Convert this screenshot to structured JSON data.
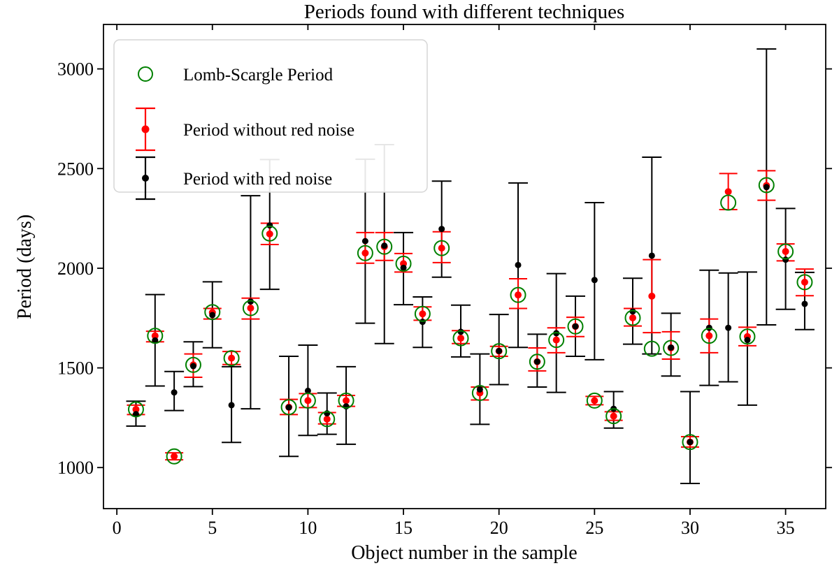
{
  "title": "Periods found with different techniques",
  "axes": {
    "xlabel": "Object number in the sample",
    "ylabel": "Period (days)"
  },
  "colors": {
    "lomb_scargle": "#008000",
    "no_red_noise": "#ff0000",
    "red_noise": "#000000",
    "spine": "#000000",
    "legend_border": "#d5d5d5",
    "background": "#ffffff"
  },
  "legend": {
    "position": "upper left",
    "entries": [
      {
        "label": "Lomb-Scargle Period",
        "marker": "open-circle",
        "color": "#008000"
      },
      {
        "label": "Period without red noise",
        "marker": "errorbar-dot",
        "color": "#ff0000"
      },
      {
        "label": "Period with red noise",
        "marker": "errorbar-dot",
        "color": "#000000"
      }
    ]
  },
  "chart_data": {
    "type": "scatter",
    "title": "Periods found with different techniques",
    "xlabel": "Object number in the sample",
    "ylabel": "Period (days)",
    "xlim": [
      -0.7,
      37.1
    ],
    "ylim": [
      794,
      3223
    ],
    "xticks": [
      0,
      5,
      10,
      15,
      20,
      25,
      30,
      35
    ],
    "yticks": [
      1000,
      1500,
      2000,
      2500,
      3000
    ],
    "grid": false,
    "x": [
      1,
      2,
      3,
      4,
      5,
      6,
      7,
      8,
      9,
      10,
      11,
      12,
      13,
      14,
      15,
      16,
      17,
      18,
      19,
      20,
      21,
      22,
      23,
      24,
      25,
      26,
      27,
      28,
      29,
      30,
      31,
      32,
      33,
      34,
      35,
      36
    ],
    "series": [
      {
        "name": "Lomb-Scargle Period",
        "type": "open-circle",
        "color": "#008000",
        "y": [
          1292,
          1661,
          1056,
          1515,
          1780,
          1549,
          1800,
          2174,
          1303,
          1336,
          1243,
          1336,
          2076,
          2108,
          2023,
          1771,
          2101,
          1649,
          1374,
          1584,
          1866,
          1531,
          1640,
          1708,
          1336,
          1258,
          1751,
          1596,
          1600,
          1128,
          1661,
          2329,
          1657,
          2417,
          2084,
          1930
        ]
      },
      {
        "name": "Period without red noise",
        "type": "errorbar-dot",
        "color": "#ff0000",
        "y": [
          1292,
          1661,
          1056,
          1515,
          1778,
          1549,
          1800,
          2172,
          1303,
          1336,
          1243,
          1336,
          2076,
          2108,
          2023,
          1771,
          2101,
          1649,
          1374,
          1584,
          1866,
          1531,
          1640,
          1708,
          1336,
          1258,
          1751,
          1860,
          1600,
          1128,
          1661,
          2384,
          1657,
          2415,
          2084,
          1930
        ],
        "y_lo": [
          1266,
          1631,
          1039,
          1453,
          1745,
          1517,
          1745,
          2119,
          1266,
          1301,
          1219,
          1307,
          2025,
          2039,
          1981,
          1739,
          2028,
          1622,
          1339,
          1558,
          1798,
          1485,
          1576,
          1657,
          1315,
          1237,
          1710,
          1677,
          1544,
          1103,
          1576,
          2294,
          1611,
          2341,
          2037,
          1862
        ],
        "y_hi": [
          1313,
          1684,
          1074,
          1570,
          1798,
          1582,
          1850,
          2226,
          1342,
          1371,
          1276,
          1362,
          2179,
          2179,
          2074,
          1806,
          2183,
          1687,
          1404,
          1608,
          1947,
          1600,
          1701,
          1754,
          1357,
          1280,
          1798,
          2043,
          1681,
          1155,
          1745,
          2475,
          1704,
          2489,
          2122,
          1996
        ]
      },
      {
        "name": "Period with red noise",
        "type": "errorbar-dot",
        "color": "#000000",
        "y": [
          1268,
          1638,
          1377,
          1509,
          1765,
          1313,
          1833,
          2215,
          1302,
          1385,
          1272,
          1307,
          2136,
          2113,
          2002,
          1731,
          2197,
          1681,
          1392,
          1585,
          2016,
          1531,
          1674,
          1708,
          1941,
          1295,
          1783,
          2063,
          1602,
          1128,
          1701,
          1701,
          1640,
          2407,
          2043,
          1821
        ],
        "y_lo": [
          1208,
          1409,
          1286,
          1406,
          1601,
          1126,
          1295,
          1894,
          1056,
          1161,
          1167,
          1117,
          1724,
          1622,
          1817,
          1603,
          1955,
          1555,
          1217,
          1416,
          1603,
          1404,
          1377,
          1558,
          1541,
          1198,
          1619,
          1570,
          1459,
          920,
          1412,
          1430,
          1313,
          1716,
          1794,
          1692
        ],
        "y_hi": [
          1333,
          1868,
          1482,
          1631,
          1932,
          1506,
          2364,
          2545,
          1558,
          1614,
          1374,
          1506,
          2547,
          2620,
          2179,
          1856,
          2437,
          1815,
          1570,
          1768,
          2428,
          1669,
          1973,
          1860,
          2329,
          1381,
          1950,
          2557,
          1774,
          1381,
          1990,
          1976,
          1981,
          3100,
          2300,
          1979
        ]
      }
    ]
  }
}
